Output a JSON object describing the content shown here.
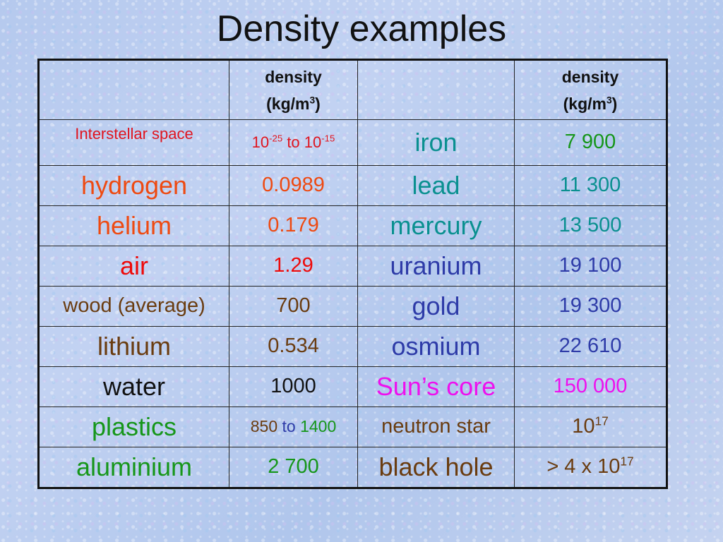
{
  "title": "Density examples",
  "header": {
    "density_label": "density",
    "unit_base": "(kg/m",
    "unit_exp": "3",
    "unit_close": ")"
  },
  "rows": [
    {
      "left": {
        "name": "Interstellar space",
        "name_color": "#e0141e",
        "value_base_1": "10",
        "value_exp_1": "-25",
        "value_mid": " to ",
        "value_base_2": "10",
        "value_exp_2": "-15",
        "value_color": "#e0141e"
      },
      "right": {
        "name": "iron",
        "name_color": "#0a9090",
        "value": "7 900",
        "value_color": "#16961a"
      }
    },
    {
      "left": {
        "name": "hydrogen",
        "name_color": "#ee4a12",
        "value": "0.0989",
        "value_color": "#ee4a12"
      },
      "right": {
        "name": "lead",
        "name_color": "#0a9090",
        "value": "11 300",
        "value_color": "#0a9090"
      }
    },
    {
      "left": {
        "name": "helium",
        "name_color": "#ee4a12",
        "value": "0.179",
        "value_color": "#ee4a12"
      },
      "right": {
        "name": "mercury",
        "name_color": "#0a9090",
        "value": "13 500",
        "value_color": "#0a9090"
      }
    },
    {
      "left": {
        "name": "air",
        "name_color": "#ee0a0a",
        "value": "1.29",
        "value_color": "#ee0a0a"
      },
      "right": {
        "name": "uranium",
        "name_color": "#2e3ba8",
        "value": "19 100",
        "value_color": "#2e3ba8"
      }
    },
    {
      "left": {
        "name": "wood (average)",
        "name_color": "#6a3c10",
        "value": "700",
        "value_color": "#6a3c10"
      },
      "right": {
        "name": "gold",
        "name_color": "#2e3ba8",
        "value": "19 300",
        "value_color": "#2e3ba8"
      }
    },
    {
      "left": {
        "name": "lithium",
        "name_color": "#6a3c10",
        "value": "0.534",
        "value_color": "#6a3c10"
      },
      "right": {
        "name": "osmium",
        "name_color": "#2e3ba8",
        "value": "22 610",
        "value_color": "#2e3ba8"
      }
    },
    {
      "left": {
        "name": "water",
        "name_color": "#111111",
        "value": "1000",
        "value_color": "#111111"
      },
      "right": {
        "name": "Sun’s core",
        "name_color": "#ee10ee",
        "value": "150 000",
        "value_color": "#ee10ee"
      }
    },
    {
      "left": {
        "name": "plastics",
        "name_color": "#16961a",
        "value_1": "850",
        "value_1_color": "#6a3c10",
        "value_mid": " to ",
        "value_mid_color": "#2e3ba8",
        "value_2": "1400",
        "value_2_color": "#16961a"
      },
      "right": {
        "name": "neutron star",
        "name_color": "#6a3c10",
        "value_base": "10",
        "value_exp": "17",
        "value_color": "#6a3c10"
      }
    },
    {
      "left": {
        "name": "aluminium",
        "name_color": "#16961a",
        "value": "2 700",
        "value_color": "#16961a"
      },
      "right": {
        "name": "black hole",
        "name_color": "#6a3c10",
        "value_prefix": "> 4 x ",
        "value_base": "10",
        "value_exp": "17",
        "value_color": "#6a3c10"
      }
    }
  ]
}
